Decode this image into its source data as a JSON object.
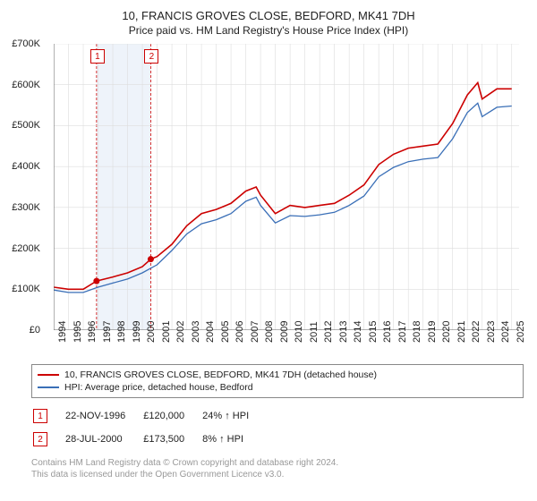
{
  "title_line1": "10, FRANCIS GROVES CLOSE, BEDFORD, MK41 7DH",
  "title_line2": "Price paid vs. HM Land Registry's House Price Index (HPI)",
  "chart": {
    "type": "line",
    "x_min": 1994,
    "x_max": 2025.5,
    "y_min": 0,
    "y_max": 700000,
    "y_ticks": [
      0,
      100000,
      200000,
      300000,
      400000,
      500000,
      600000,
      700000
    ],
    "y_tick_labels": [
      "£0",
      "£100K",
      "£200K",
      "£300K",
      "£400K",
      "£500K",
      "£600K",
      "£700K"
    ],
    "x_ticks": [
      1994,
      1995,
      1996,
      1997,
      1998,
      1999,
      2000,
      2001,
      2002,
      2003,
      2004,
      2005,
      2006,
      2007,
      2008,
      2009,
      2010,
      2011,
      2012,
      2013,
      2014,
      2015,
      2016,
      2017,
      2018,
      2019,
      2020,
      2021,
      2022,
      2023,
      2024,
      2025
    ],
    "band_x": [
      1996.9,
      2000.57
    ],
    "band_color": "#eef3fa",
    "band_border": "#c00",
    "grid_color": "#dddddd",
    "axis_color": "#666666",
    "background": "#ffffff",
    "title_fontsize": 13,
    "label_fontsize": 11,
    "series": [
      {
        "name": "red",
        "color": "#cc0000",
        "width": 1.6,
        "data": [
          [
            1994,
            105000
          ],
          [
            1995,
            100000
          ],
          [
            1996,
            100000
          ],
          [
            1996.9,
            120000
          ],
          [
            1998,
            130000
          ],
          [
            1999,
            140000
          ],
          [
            2000,
            155000
          ],
          [
            2000.57,
            173500
          ],
          [
            2001,
            180000
          ],
          [
            2002,
            210000
          ],
          [
            2003,
            255000
          ],
          [
            2004,
            285000
          ],
          [
            2005,
            295000
          ],
          [
            2006,
            310000
          ],
          [
            2007,
            340000
          ],
          [
            2007.7,
            350000
          ],
          [
            2008,
            330000
          ],
          [
            2009,
            285000
          ],
          [
            2010,
            305000
          ],
          [
            2011,
            300000
          ],
          [
            2012,
            305000
          ],
          [
            2013,
            310000
          ],
          [
            2014,
            330000
          ],
          [
            2015,
            355000
          ],
          [
            2016,
            405000
          ],
          [
            2017,
            430000
          ],
          [
            2018,
            445000
          ],
          [
            2019,
            450000
          ],
          [
            2020,
            455000
          ],
          [
            2021,
            505000
          ],
          [
            2022,
            575000
          ],
          [
            2022.7,
            605000
          ],
          [
            2023,
            565000
          ],
          [
            2024,
            590000
          ],
          [
            2025,
            590000
          ]
        ]
      },
      {
        "name": "blue",
        "color": "#3a6fb7",
        "width": 1.3,
        "data": [
          [
            1994,
            98000
          ],
          [
            1995,
            92000
          ],
          [
            1996,
            92000
          ],
          [
            1997,
            105000
          ],
          [
            1998,
            115000
          ],
          [
            1999,
            125000
          ],
          [
            2000,
            140000
          ],
          [
            2001,
            160000
          ],
          [
            2002,
            195000
          ],
          [
            2003,
            235000
          ],
          [
            2004,
            260000
          ],
          [
            2005,
            270000
          ],
          [
            2006,
            285000
          ],
          [
            2007,
            315000
          ],
          [
            2007.7,
            325000
          ],
          [
            2008,
            305000
          ],
          [
            2009,
            262000
          ],
          [
            2010,
            280000
          ],
          [
            2011,
            278000
          ],
          [
            2012,
            282000
          ],
          [
            2013,
            288000
          ],
          [
            2014,
            305000
          ],
          [
            2015,
            328000
          ],
          [
            2016,
            375000
          ],
          [
            2017,
            398000
          ],
          [
            2018,
            412000
          ],
          [
            2019,
            418000
          ],
          [
            2020,
            422000
          ],
          [
            2021,
            468000
          ],
          [
            2022,
            532000
          ],
          [
            2022.7,
            555000
          ],
          [
            2023,
            522000
          ],
          [
            2024,
            545000
          ],
          [
            2025,
            548000
          ]
        ]
      }
    ],
    "markers": [
      {
        "n": "1",
        "x": 1996.9,
        "y": 120000
      },
      {
        "n": "2",
        "x": 2000.57,
        "y": 173500
      }
    ]
  },
  "legend": {
    "items": [
      {
        "color": "#cc0000",
        "label": "10, FRANCIS GROVES CLOSE, BEDFORD, MK41 7DH (detached house)"
      },
      {
        "color": "#3a6fb7",
        "label": "HPI: Average price, detached house, Bedford"
      }
    ]
  },
  "transactions": [
    {
      "n": "1",
      "date": "22-NOV-1996",
      "price": "£120,000",
      "delta": "24% ↑ HPI"
    },
    {
      "n": "2",
      "date": "28-JUL-2000",
      "price": "£173,500",
      "delta": "8% ↑ HPI"
    }
  ],
  "footer_l1": "Contains HM Land Registry data © Crown copyright and database right 2024.",
  "footer_l2": "This data is licensed under the Open Government Licence v3.0."
}
